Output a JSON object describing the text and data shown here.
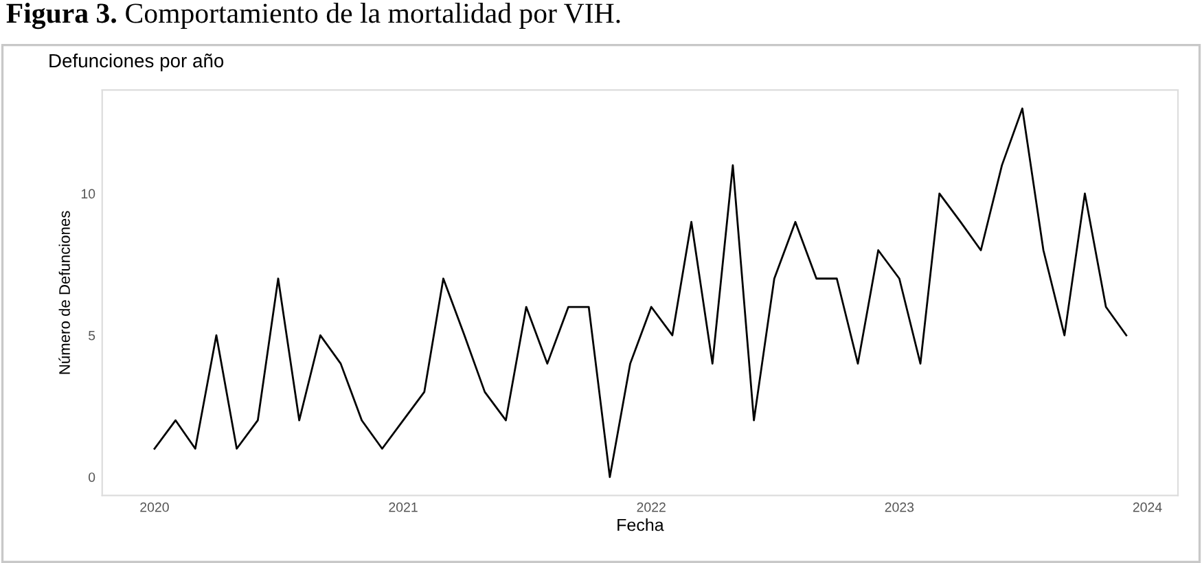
{
  "chart_data": {
    "type": "line",
    "title": "Figura 3. Comportamiento de la mortalidad por VIH.",
    "subtitle": "Defunciones por año",
    "xlabel": "Fecha",
    "ylabel": "Número de Defunciones",
    "x": [
      "2020-01",
      "2020-02",
      "2020-03",
      "2020-04",
      "2020-05",
      "2020-06",
      "2020-07",
      "2020-08",
      "2020-09",
      "2020-10",
      "2020-11",
      "2020-12",
      "2021-01",
      "2021-02",
      "2021-03",
      "2021-04",
      "2021-05",
      "2021-06",
      "2021-07",
      "2021-08",
      "2021-09",
      "2021-10",
      "2021-11",
      "2021-12",
      "2022-01",
      "2022-02",
      "2022-03",
      "2022-04",
      "2022-05",
      "2022-06",
      "2022-07",
      "2022-08",
      "2022-09",
      "2022-10",
      "2022-11",
      "2022-12",
      "2023-01",
      "2023-02",
      "2023-03",
      "2023-04",
      "2023-05",
      "2023-06",
      "2023-07",
      "2023-08",
      "2023-09",
      "2023-10",
      "2023-11",
      "2023-12"
    ],
    "series": [
      {
        "color": "#000000",
        "values": [
          1,
          2,
          1,
          5,
          1,
          2,
          7,
          2,
          5,
          4,
          2,
          1,
          2,
          3,
          7,
          5,
          3,
          2,
          6,
          4,
          6,
          6,
          0,
          4,
          6,
          5,
          9,
          4,
          11,
          2,
          7,
          9,
          7,
          7,
          4,
          8,
          7,
          4,
          10,
          9,
          8,
          11,
          13,
          8,
          5,
          10,
          6,
          5
        ]
      }
    ],
    "xlim": [
      "2019-10-16",
      "2024-02-15"
    ],
    "xticks": [
      {
        "value": "2020",
        "label": "2020"
      },
      {
        "value": "2021",
        "label": "2021"
      },
      {
        "value": "2022",
        "label": "2022"
      },
      {
        "value": "2023",
        "label": "2023"
      },
      {
        "value": "2024",
        "label": "2024"
      }
    ],
    "ylim": [
      -0.65,
      13.65
    ],
    "yticks": [
      0,
      5,
      10
    ],
    "grid": false,
    "legend": false,
    "marker": "none",
    "line_style": "solid"
  }
}
